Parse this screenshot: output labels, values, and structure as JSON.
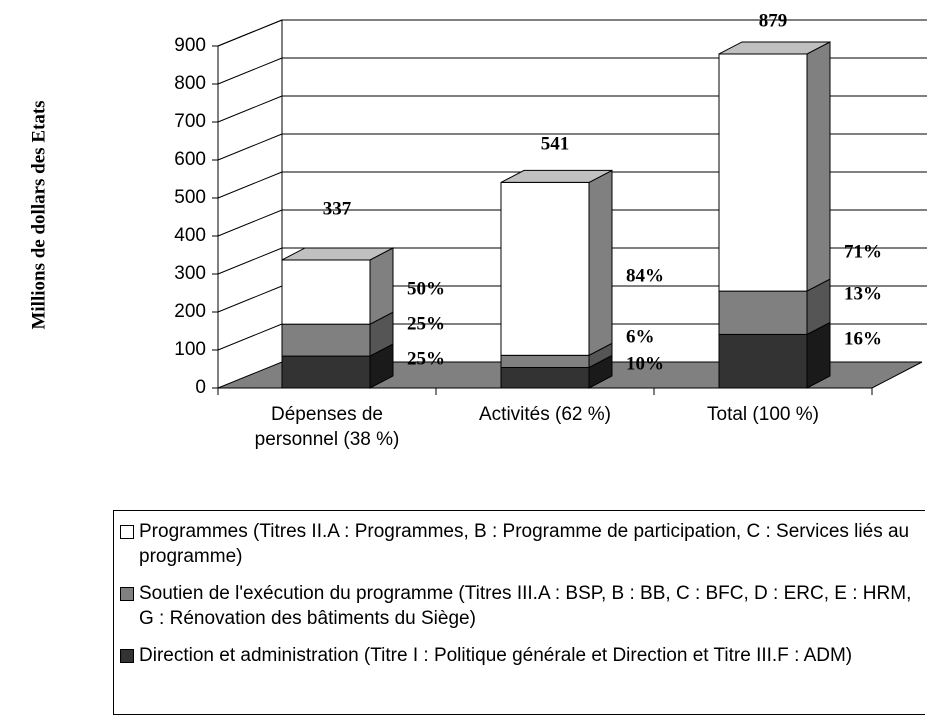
{
  "chart_data": {
    "type": "bar3d_stacked",
    "y_axis_label": "Millions de dollars des Etats",
    "categories": [
      "Dépenses de personnel (38 %)",
      "Activités (62 %)",
      "Total (100 %)"
    ],
    "totals": [
      337,
      541,
      879
    ],
    "series": [
      {
        "name": "Direction et administration (Titre I : Politique générale et Direction et Titre III.F : ADM)",
        "color": "#333333",
        "values": [
          84,
          54,
          141
        ],
        "percent_labels": [
          "25%",
          "10%",
          "16%"
        ]
      },
      {
        "name": "Soutien de l'exécution du programme (Titres III.A : BSP, B : BB, C : BFC, D : ERC, E : HRM, G : Rénovation des bâtiments du Siège)",
        "color": "#808080",
        "values": [
          84,
          32,
          114
        ],
        "percent_labels": [
          "25%",
          "6%",
          "13%"
        ]
      },
      {
        "name": "Programmes (Titres II.A : Programmes, B : Programme de participation, C : Services liés au programme)",
        "color": "#ffffff",
        "values": [
          169,
          455,
          624
        ],
        "percent_labels": [
          "50%",
          "84%",
          "71%"
        ]
      }
    ],
    "ylim": [
      0,
      900
    ],
    "yticks": [
      0,
      100,
      200,
      300,
      400,
      500,
      600,
      700,
      800,
      900
    ],
    "grid": true
  }
}
